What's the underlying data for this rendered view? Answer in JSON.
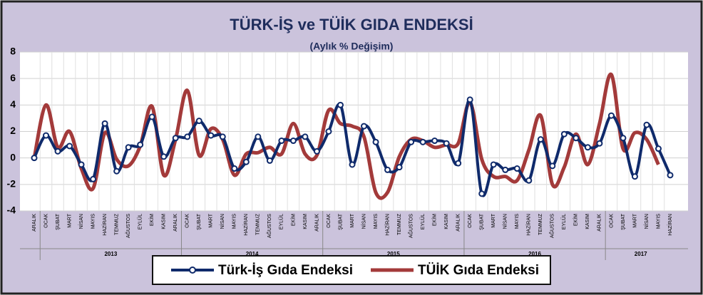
{
  "chart_data": {
    "type": "line",
    "title": "TÜRK-İŞ ve TÜİK GIDA ENDEKSİ",
    "subtitle": "(Aylık % Değişim)",
    "categories": [
      "ARALIK",
      "OCAK",
      "ŞUBAT",
      "MART",
      "NİSAN",
      "MAYIS",
      "HAZİRAN",
      "TEMMUZ",
      "AĞUSTOS",
      "EYLÜL",
      "EKİM",
      "KASIM",
      "ARALIK",
      "OCAK",
      "ŞUBAT",
      "MART",
      "NİSAN",
      "MAYIS",
      "HAZİRAN",
      "TEMMUZ",
      "AĞUSTOS",
      "EYLÜL",
      "EKİM",
      "KASIM",
      "ARALIK",
      "OCAK",
      "ŞUBAT",
      "MART",
      "NİSAN",
      "MAYIS",
      "HAZİRAN",
      "TEMMUZ",
      "AĞUSTOS",
      "EYLÜL",
      "EKİM",
      "KASIM",
      "ARALIK",
      "OCAK",
      "ŞUBAT",
      "MART",
      "NİSAN",
      "MAYIS",
      "HAZİRAN",
      "TEMMUZ",
      "AĞUSTOS",
      "EYLÜL",
      "EKİM",
      "KASIM",
      "ARALIK",
      "OCAK",
      "ŞUBAT",
      "MART",
      "NİSAN",
      "MAYIS",
      "HAZİRAN"
    ],
    "years": [
      "2013",
      "2014",
      "2015",
      "2016",
      "2017"
    ],
    "series": [
      {
        "name": "Türk-İş Gıda Endeksi",
        "color": "#0f2a6b",
        "marker": true,
        "values": [
          0,
          1.7,
          0.5,
          0.9,
          -0.5,
          -1.6,
          2.6,
          -1.0,
          0.8,
          1.0,
          3.1,
          0.1,
          1.5,
          1.6,
          2.8,
          1.7,
          1.6,
          -0.8,
          -0.3,
          1.6,
          -0.2,
          1.3,
          1.3,
          1.6,
          0.5,
          2.0,
          4.0,
          -0.5,
          2.4,
          1.2,
          -0.9,
          -0.7,
          1.2,
          1.2,
          1.3,
          1.1,
          -0.4,
          4.4,
          -2.7,
          -0.5,
          -0.9,
          -0.8,
          -1.7,
          1.4,
          -0.6,
          1.8,
          1.5,
          0.8,
          1.1,
          3.2,
          1.5,
          -1.4,
          2.5,
          0.7,
          -1.3
        ]
      },
      {
        "name": "TÜİK Gıda Endeksi",
        "color": "#a33a3a",
        "marker": false,
        "values": [
          0,
          4.0,
          0.8,
          2.0,
          -0.8,
          -2.3,
          1.9,
          -0.1,
          -0.6,
          0.9,
          3.9,
          -1.3,
          1.4,
          5.1,
          0.2,
          2.2,
          1.4,
          -1.3,
          0.3,
          0.4,
          0.8,
          0.3,
          2.6,
          0.3,
          0.2,
          3.6,
          2.6,
          2.4,
          1.6,
          -2.6,
          -2.6,
          0.1,
          1.4,
          1.3,
          0.8,
          1.0,
          1.1,
          4.2,
          -0.1,
          -1.4,
          -1.4,
          -1.7,
          0.6,
          3.2,
          -2.0,
          -0.7,
          1.8,
          -0.5,
          2.6,
          6.3,
          0.7,
          1.9,
          1.4,
          -0.5,
          null
        ]
      }
    ],
    "ylim": [
      -4,
      8
    ],
    "yticks": [
      -4,
      -2,
      0,
      2,
      4,
      6,
      8
    ],
    "grid": true
  }
}
